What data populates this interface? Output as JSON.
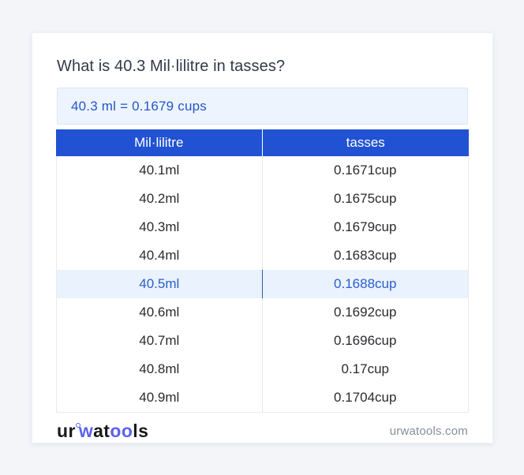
{
  "page": {
    "title": "What is 40.3 Mil·lilitre in tasses?",
    "result": "40.3 ml = 0.1679 cups"
  },
  "table": {
    "headers": [
      "Mil·lilitre",
      "tasses"
    ],
    "rows": [
      {
        "ml": "40.1ml",
        "cup": "0.1671cup",
        "highlight": false
      },
      {
        "ml": "40.2ml",
        "cup": "0.1675cup",
        "highlight": false
      },
      {
        "ml": "40.3ml",
        "cup": "0.1679cup",
        "highlight": false
      },
      {
        "ml": "40.4ml",
        "cup": "0.1683cup",
        "highlight": false
      },
      {
        "ml": "40.5ml",
        "cup": "0.1688cup",
        "highlight": true
      },
      {
        "ml": "40.6ml",
        "cup": "0.1692cup",
        "highlight": false
      },
      {
        "ml": "40.7ml",
        "cup": "0.1696cup",
        "highlight": false
      },
      {
        "ml": "40.8ml",
        "cup": "0.17cup",
        "highlight": false
      },
      {
        "ml": "40.9ml",
        "cup": "0.1704cup",
        "highlight": false
      }
    ]
  },
  "footer": {
    "logo_parts": [
      "ur",
      "w",
      "at",
      "oo",
      "ls"
    ],
    "domain": "urwatools.com"
  },
  "colors": {
    "page_background": "#f3f5f9",
    "card_background": "#ffffff",
    "header_blue": "#2152d3",
    "result_box_background": "#edf4fd",
    "result_text_blue": "#2456c8",
    "highlight_row_background": "#e9f2fd",
    "highlight_row_text": "#2a5ece",
    "logo_blue": "#5a62ef"
  }
}
